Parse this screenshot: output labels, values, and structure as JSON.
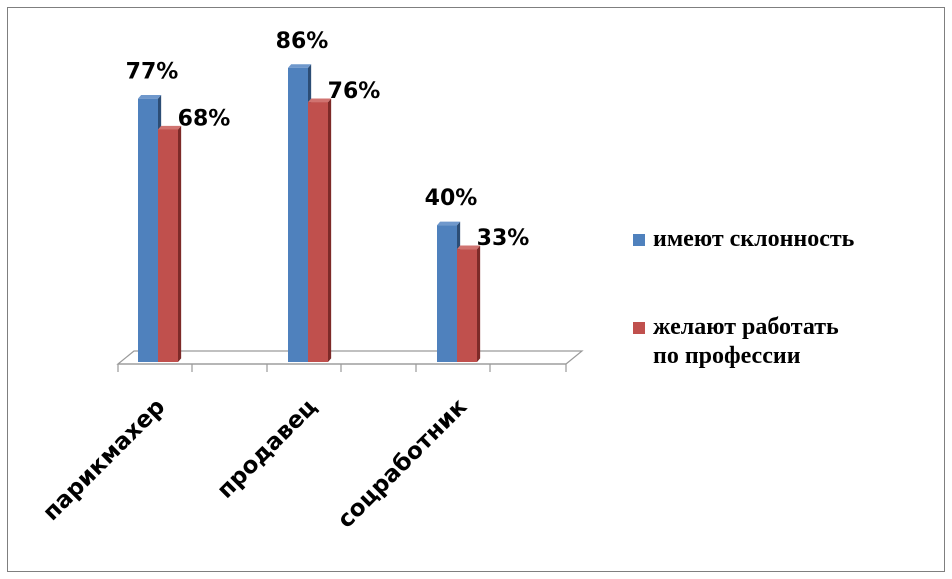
{
  "chart_data": {
    "type": "bar",
    "title": "",
    "xlabel": "",
    "ylabel": "",
    "ylim": [
      0,
      100
    ],
    "categories": [
      "парикмахер",
      "продавец",
      "соцработник"
    ],
    "series": [
      {
        "name": "имеют склонность",
        "values": [
          77,
          86,
          40
        ],
        "labels": [
          "77%",
          "86%",
          "40%"
        ],
        "color": "#4f81bd",
        "dark": "#2c4d75",
        "top": "#6f98cc"
      },
      {
        "name": "желают работать по профессии",
        "values": [
          68,
          76,
          33
        ],
        "labels": [
          "68%",
          "76%",
          "33%"
        ],
        "color": "#c0504d",
        "dark": "#7d2a28",
        "top": "#d07370"
      }
    ],
    "legend": {
      "position": "right",
      "items": [
        {
          "lines": [
            "имеют склонность"
          ],
          "color": "#4f81bd"
        },
        {
          "lines": [
            "желают работать",
            "по профессии"
          ],
          "color": "#c0504d"
        }
      ]
    },
    "grid": false
  }
}
